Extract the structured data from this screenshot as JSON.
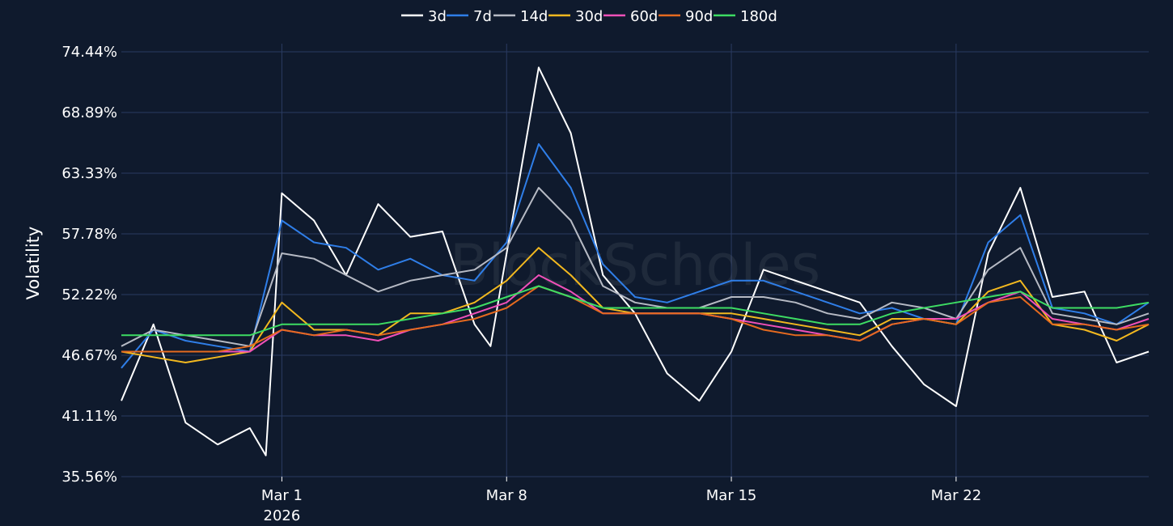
{
  "watermark": "BlockScholes",
  "chart_data": {
    "type": "line",
    "ylabel": "Volatility",
    "xlabel": "",
    "ylim": [
      35.56,
      74.44
    ],
    "y_ticks": [
      "35.56%",
      "41.11%",
      "46.67%",
      "52.22%",
      "57.78%",
      "63.33%",
      "68.89%",
      "74.44%"
    ],
    "x_range": [
      "2026-02-24",
      "2026-03-28"
    ],
    "x_ticks": [
      {
        "date": "2026-03-01",
        "label": "Mar 1",
        "sublabel": "2026"
      },
      {
        "date": "2026-03-08",
        "label": "Mar 8",
        "sublabel": ""
      },
      {
        "date": "2026-03-15",
        "label": "Mar 15",
        "sublabel": ""
      },
      {
        "date": "2026-03-22",
        "label": "Mar 22",
        "sublabel": ""
      }
    ],
    "grid": true,
    "legend_position": "top-center",
    "series": [
      {
        "name": "3d",
        "color": "#ffffff",
        "points": [
          [
            "2026-02-24",
            42.5
          ],
          [
            "2026-02-25",
            49.5
          ],
          [
            "2026-02-26",
            40.5
          ],
          [
            "2026-02-27",
            38.5
          ],
          [
            "2026-02-28",
            40.0
          ],
          [
            "2026-02-28T12:00",
            37.5
          ],
          [
            "2026-03-01",
            61.5
          ],
          [
            "2026-03-02",
            59.0
          ],
          [
            "2026-03-03",
            54.0
          ],
          [
            "2026-03-04",
            60.5
          ],
          [
            "2026-03-05",
            57.5
          ],
          [
            "2026-03-06",
            58.0
          ],
          [
            "2026-03-07",
            49.5
          ],
          [
            "2026-03-07T12:00",
            47.5
          ],
          [
            "2026-03-08",
            56.0
          ],
          [
            "2026-03-09",
            73.0
          ],
          [
            "2026-03-10",
            67.0
          ],
          [
            "2026-03-11",
            54.0
          ],
          [
            "2026-03-12",
            50.5
          ],
          [
            "2026-03-13",
            45.0
          ],
          [
            "2026-03-14",
            42.5
          ],
          [
            "2026-03-15",
            47.0
          ],
          [
            "2026-03-16",
            54.5
          ],
          [
            "2026-03-17",
            53.5
          ],
          [
            "2026-03-18",
            52.5
          ],
          [
            "2026-03-19",
            51.5
          ],
          [
            "2026-03-20",
            47.5
          ],
          [
            "2026-03-21",
            44.0
          ],
          [
            "2026-03-22",
            42.0
          ],
          [
            "2026-03-23",
            56.0
          ],
          [
            "2026-03-24",
            62.0
          ],
          [
            "2026-03-25",
            52.0
          ],
          [
            "2026-03-26",
            52.5
          ],
          [
            "2026-03-27",
            46.0
          ],
          [
            "2026-03-28",
            47.0
          ]
        ]
      },
      {
        "name": "7d",
        "color": "#2f7ee8",
        "points": [
          [
            "2026-02-24",
            45.5
          ],
          [
            "2026-02-25",
            49.0
          ],
          [
            "2026-02-26",
            48.0
          ],
          [
            "2026-02-27",
            47.5
          ],
          [
            "2026-02-28",
            47.0
          ],
          [
            "2026-03-01",
            59.0
          ],
          [
            "2026-03-02",
            57.0
          ],
          [
            "2026-03-03",
            56.5
          ],
          [
            "2026-03-04",
            54.5
          ],
          [
            "2026-03-05",
            55.5
          ],
          [
            "2026-03-06",
            54.0
          ],
          [
            "2026-03-07",
            53.5
          ],
          [
            "2026-03-08",
            57.0
          ],
          [
            "2026-03-09",
            66.0
          ],
          [
            "2026-03-10",
            62.0
          ],
          [
            "2026-03-11",
            55.0
          ],
          [
            "2026-03-12",
            52.0
          ],
          [
            "2026-03-13",
            51.5
          ],
          [
            "2026-03-14",
            52.5
          ],
          [
            "2026-03-15",
            53.5
          ],
          [
            "2026-03-16",
            53.5
          ],
          [
            "2026-03-17",
            52.5
          ],
          [
            "2026-03-18",
            51.5
          ],
          [
            "2026-03-19",
            50.5
          ],
          [
            "2026-03-20",
            51.0
          ],
          [
            "2026-03-21",
            50.0
          ],
          [
            "2026-03-22",
            49.5
          ],
          [
            "2026-03-23",
            57.0
          ],
          [
            "2026-03-24",
            59.5
          ],
          [
            "2026-03-25",
            51.0
          ],
          [
            "2026-03-26",
            50.5
          ],
          [
            "2026-03-27",
            49.5
          ],
          [
            "2026-03-28",
            51.5
          ]
        ]
      },
      {
        "name": "14d",
        "color": "#b6bac4",
        "points": [
          [
            "2026-02-24",
            47.5
          ],
          [
            "2026-02-25",
            49.0
          ],
          [
            "2026-02-26",
            48.5
          ],
          [
            "2026-02-27",
            48.0
          ],
          [
            "2026-02-28",
            47.5
          ],
          [
            "2026-03-01",
            56.0
          ],
          [
            "2026-03-02",
            55.5
          ],
          [
            "2026-03-03",
            54.0
          ],
          [
            "2026-03-04",
            52.5
          ],
          [
            "2026-03-05",
            53.5
          ],
          [
            "2026-03-06",
            54.0
          ],
          [
            "2026-03-07",
            54.5
          ],
          [
            "2026-03-08",
            56.5
          ],
          [
            "2026-03-09",
            62.0
          ],
          [
            "2026-03-10",
            59.0
          ],
          [
            "2026-03-11",
            53.0
          ],
          [
            "2026-03-12",
            51.5
          ],
          [
            "2026-03-13",
            51.0
          ],
          [
            "2026-03-14",
            51.0
          ],
          [
            "2026-03-15",
            52.0
          ],
          [
            "2026-03-16",
            52.0
          ],
          [
            "2026-03-17",
            51.5
          ],
          [
            "2026-03-18",
            50.5
          ],
          [
            "2026-03-19",
            50.0
          ],
          [
            "2026-03-20",
            51.5
          ],
          [
            "2026-03-21",
            51.0
          ],
          [
            "2026-03-22",
            50.0
          ],
          [
            "2026-03-23",
            54.5
          ],
          [
            "2026-03-24",
            56.5
          ],
          [
            "2026-03-25",
            50.5
          ],
          [
            "2026-03-26",
            50.0
          ],
          [
            "2026-03-27",
            49.5
          ],
          [
            "2026-03-28",
            50.5
          ]
        ]
      },
      {
        "name": "30d",
        "color": "#f2b81f",
        "points": [
          [
            "2026-02-24",
            47.0
          ],
          [
            "2026-02-25",
            46.5
          ],
          [
            "2026-02-26",
            46.0
          ],
          [
            "2026-02-27",
            46.5
          ],
          [
            "2026-02-28",
            47.0
          ],
          [
            "2026-03-01",
            51.5
          ],
          [
            "2026-03-02",
            49.0
          ],
          [
            "2026-03-03",
            49.0
          ],
          [
            "2026-03-04",
            48.5
          ],
          [
            "2026-03-05",
            50.5
          ],
          [
            "2026-03-06",
            50.5
          ],
          [
            "2026-03-07",
            51.5
          ],
          [
            "2026-03-08",
            53.5
          ],
          [
            "2026-03-09",
            56.5
          ],
          [
            "2026-03-10",
            54.0
          ],
          [
            "2026-03-11",
            51.0
          ],
          [
            "2026-03-12",
            50.5
          ],
          [
            "2026-03-13",
            50.5
          ],
          [
            "2026-03-14",
            50.5
          ],
          [
            "2026-03-15",
            50.5
          ],
          [
            "2026-03-16",
            50.0
          ],
          [
            "2026-03-17",
            49.5
          ],
          [
            "2026-03-18",
            49.0
          ],
          [
            "2026-03-19",
            48.5
          ],
          [
            "2026-03-20",
            50.0
          ],
          [
            "2026-03-21",
            50.0
          ],
          [
            "2026-03-22",
            49.5
          ],
          [
            "2026-03-23",
            52.5
          ],
          [
            "2026-03-24",
            53.5
          ],
          [
            "2026-03-25",
            49.5
          ],
          [
            "2026-03-26",
            49.0
          ],
          [
            "2026-03-27",
            48.0
          ],
          [
            "2026-03-28",
            49.5
          ]
        ]
      },
      {
        "name": "60d",
        "color": "#f050b8",
        "points": [
          [
            "2026-02-24",
            47.0
          ],
          [
            "2026-02-25",
            47.0
          ],
          [
            "2026-02-26",
            47.0
          ],
          [
            "2026-02-27",
            47.0
          ],
          [
            "2026-02-28",
            47.0
          ],
          [
            "2026-03-01",
            49.0
          ],
          [
            "2026-03-02",
            48.5
          ],
          [
            "2026-03-03",
            48.5
          ],
          [
            "2026-03-04",
            48.0
          ],
          [
            "2026-03-05",
            49.0
          ],
          [
            "2026-03-06",
            49.5
          ],
          [
            "2026-03-07",
            50.5
          ],
          [
            "2026-03-08",
            51.5
          ],
          [
            "2026-03-09",
            54.0
          ],
          [
            "2026-03-10",
            52.5
          ],
          [
            "2026-03-11",
            50.5
          ],
          [
            "2026-03-12",
            50.5
          ],
          [
            "2026-03-13",
            50.5
          ],
          [
            "2026-03-14",
            50.5
          ],
          [
            "2026-03-15",
            50.0
          ],
          [
            "2026-03-16",
            49.5
          ],
          [
            "2026-03-17",
            49.0
          ],
          [
            "2026-03-18",
            48.5
          ],
          [
            "2026-03-19",
            48.0
          ],
          [
            "2026-03-20",
            49.5
          ],
          [
            "2026-03-21",
            50.0
          ],
          [
            "2026-03-22",
            50.0
          ],
          [
            "2026-03-23",
            51.5
          ],
          [
            "2026-03-24",
            52.5
          ],
          [
            "2026-03-25",
            50.0
          ],
          [
            "2026-03-26",
            49.5
          ],
          [
            "2026-03-27",
            49.0
          ],
          [
            "2026-03-28",
            50.0
          ]
        ]
      },
      {
        "name": "90d",
        "color": "#e56a1f",
        "points": [
          [
            "2026-02-24",
            47.0
          ],
          [
            "2026-02-25",
            47.0
          ],
          [
            "2026-02-26",
            47.0
          ],
          [
            "2026-02-27",
            47.0
          ],
          [
            "2026-02-28",
            47.5
          ],
          [
            "2026-03-01",
            49.0
          ],
          [
            "2026-03-02",
            48.5
          ],
          [
            "2026-03-03",
            49.0
          ],
          [
            "2026-03-04",
            48.5
          ],
          [
            "2026-03-05",
            49.0
          ],
          [
            "2026-03-06",
            49.5
          ],
          [
            "2026-03-07",
            50.0
          ],
          [
            "2026-03-08",
            51.0
          ],
          [
            "2026-03-09",
            53.0
          ],
          [
            "2026-03-10",
            52.0
          ],
          [
            "2026-03-11",
            50.5
          ],
          [
            "2026-03-12",
            50.5
          ],
          [
            "2026-03-13",
            50.5
          ],
          [
            "2026-03-14",
            50.5
          ],
          [
            "2026-03-15",
            50.0
          ],
          [
            "2026-03-16",
            49.0
          ],
          [
            "2026-03-17",
            48.5
          ],
          [
            "2026-03-18",
            48.5
          ],
          [
            "2026-03-19",
            48.0
          ],
          [
            "2026-03-20",
            49.5
          ],
          [
            "2026-03-21",
            50.0
          ],
          [
            "2026-03-22",
            49.5
          ],
          [
            "2026-03-23",
            51.5
          ],
          [
            "2026-03-24",
            52.0
          ],
          [
            "2026-03-25",
            49.5
          ],
          [
            "2026-03-26",
            49.5
          ],
          [
            "2026-03-27",
            49.0
          ],
          [
            "2026-03-28",
            49.5
          ]
        ]
      },
      {
        "name": "180d",
        "color": "#3ddc63",
        "points": [
          [
            "2026-02-24",
            48.5
          ],
          [
            "2026-02-25",
            48.5
          ],
          [
            "2026-02-26",
            48.5
          ],
          [
            "2026-02-27",
            48.5
          ],
          [
            "2026-02-28",
            48.5
          ],
          [
            "2026-03-01",
            49.5
          ],
          [
            "2026-03-02",
            49.5
          ],
          [
            "2026-03-03",
            49.5
          ],
          [
            "2026-03-04",
            49.5
          ],
          [
            "2026-03-05",
            50.0
          ],
          [
            "2026-03-06",
            50.5
          ],
          [
            "2026-03-07",
            51.0
          ],
          [
            "2026-03-08",
            52.0
          ],
          [
            "2026-03-09",
            53.0
          ],
          [
            "2026-03-10",
            52.0
          ],
          [
            "2026-03-11",
            51.0
          ],
          [
            "2026-03-12",
            51.0
          ],
          [
            "2026-03-13",
            51.0
          ],
          [
            "2026-03-14",
            51.0
          ],
          [
            "2026-03-15",
            51.0
          ],
          [
            "2026-03-16",
            50.5
          ],
          [
            "2026-03-17",
            50.0
          ],
          [
            "2026-03-18",
            49.5
          ],
          [
            "2026-03-19",
            49.5
          ],
          [
            "2026-03-20",
            50.5
          ],
          [
            "2026-03-21",
            51.0
          ],
          [
            "2026-03-22",
            51.5
          ],
          [
            "2026-03-23",
            52.0
          ],
          [
            "2026-03-24",
            52.5
          ],
          [
            "2026-03-25",
            51.0
          ],
          [
            "2026-03-26",
            51.0
          ],
          [
            "2026-03-27",
            51.0
          ],
          [
            "2026-03-28",
            51.5
          ]
        ]
      }
    ]
  }
}
